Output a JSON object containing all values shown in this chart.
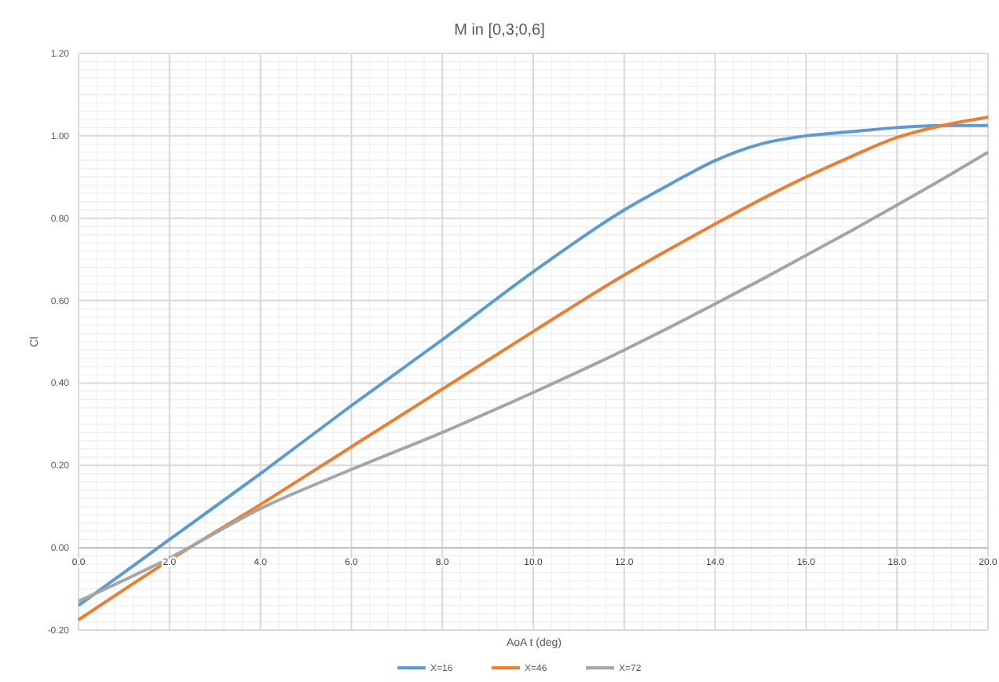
{
  "chart_data": {
    "type": "line",
    "title": "M in [0,3;0,6]",
    "xlabel": "AoA t (deg)",
    "ylabel": "Cl",
    "xlim": [
      0,
      20
    ],
    "ylim": [
      -0.2,
      1.2
    ],
    "xticks": [
      {
        "value": 0,
        "label": "0.0"
      },
      {
        "value": 2,
        "label": "2.0"
      },
      {
        "value": 4,
        "label": "4.0"
      },
      {
        "value": 6,
        "label": "6.0"
      },
      {
        "value": 8,
        "label": "8.0"
      },
      {
        "value": 10,
        "label": "10.0"
      },
      {
        "value": 12,
        "label": "12.0"
      },
      {
        "value": 14,
        "label": "14.0"
      },
      {
        "value": 16,
        "label": "16.0"
      },
      {
        "value": 18,
        "label": "18.0"
      },
      {
        "value": 20,
        "label": "20.0"
      }
    ],
    "yticks": [
      {
        "value": -0.2,
        "label": "-0.20"
      },
      {
        "value": 0,
        "label": "0.00"
      },
      {
        "value": 0.2,
        "label": "0.20"
      },
      {
        "value": 0.4,
        "label": "0.40"
      },
      {
        "value": 0.6,
        "label": "0.60"
      },
      {
        "value": 0.8,
        "label": "0.80"
      },
      {
        "value": 1,
        "label": "1.00"
      },
      {
        "value": 1.2,
        "label": "1.20"
      }
    ],
    "x": [
      0,
      2,
      4,
      6,
      8,
      10,
      12,
      13,
      14,
      15,
      16,
      17,
      18,
      19,
      20
    ],
    "series": [
      {
        "name": "X=16",
        "color": "#5b9bd5",
        "values": [
          -0.14,
          0.02,
          0.18,
          0.345,
          0.505,
          0.67,
          0.82,
          0.882,
          0.94,
          0.98,
          1.0,
          1.01,
          1.02,
          1.025,
          1.025
        ]
      },
      {
        "name": "X=46",
        "color": "#ed7d31",
        "values": [
          -0.175,
          -0.03,
          0.105,
          0.245,
          0.385,
          0.525,
          0.662,
          0.725,
          0.786,
          0.845,
          0.9,
          0.95,
          0.996,
          1.025,
          1.045
        ]
      },
      {
        "name": "X=72",
        "color": "#a5a5a5",
        "values": [
          -0.13,
          -0.025,
          0.095,
          0.19,
          0.28,
          0.377,
          0.48,
          0.535,
          0.592,
          0.65,
          0.71,
          0.77,
          0.832,
          0.895,
          0.96
        ]
      }
    ],
    "grid": true,
    "legend": "bottom",
    "marker": "none",
    "line_style": "solid"
  }
}
